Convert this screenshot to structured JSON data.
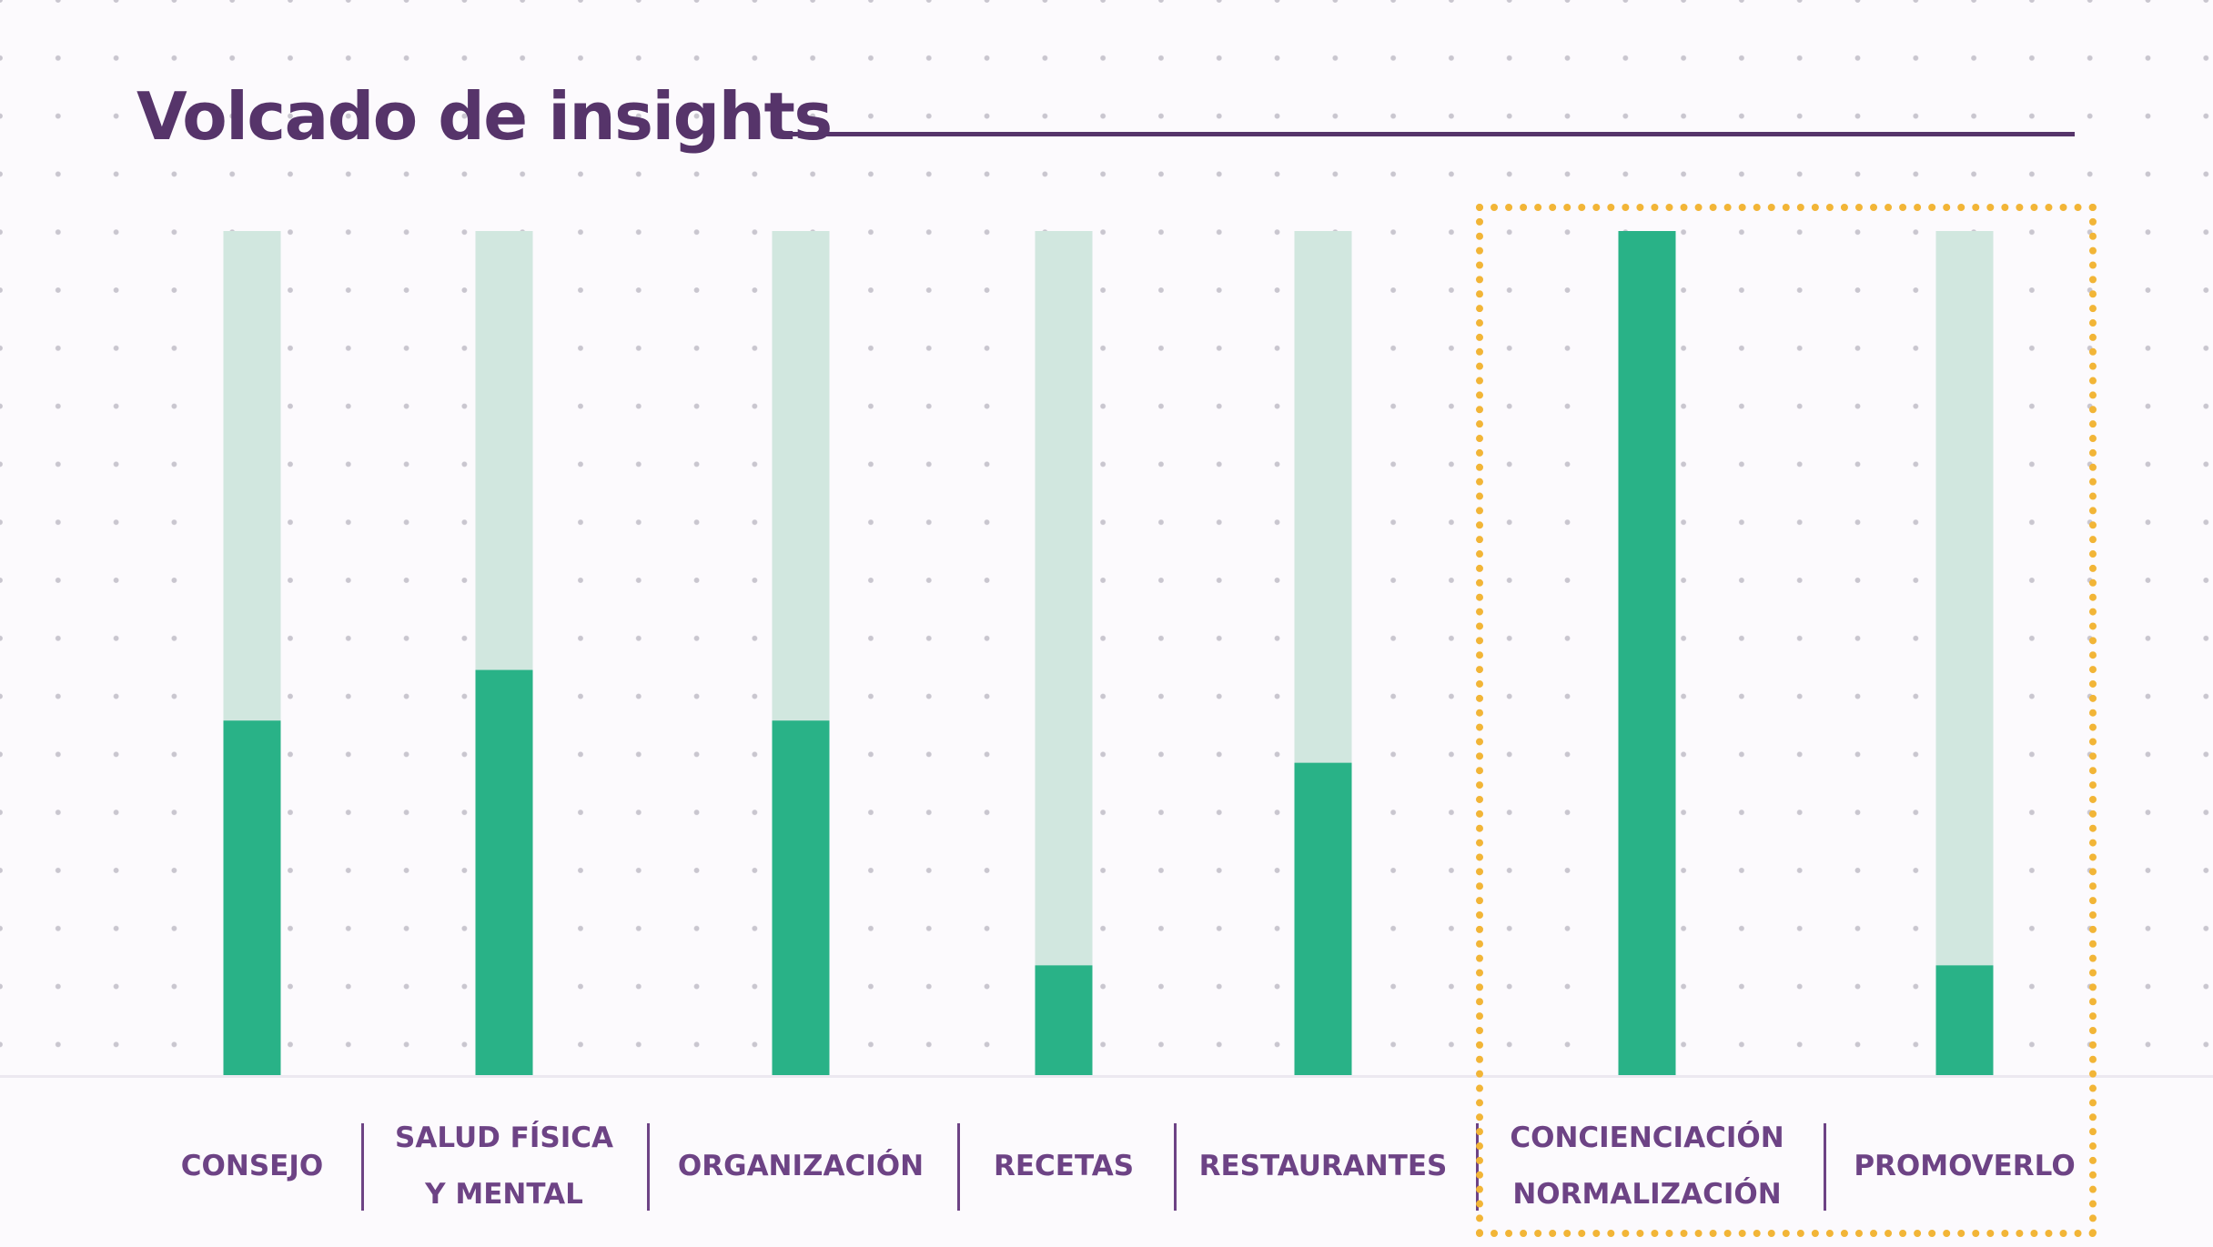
{
  "title": "Volcado de insights",
  "colors": {
    "title": "#56346a",
    "bar_fill": "#29b287",
    "bar_track": "#d1e7df",
    "label": "#6d4385",
    "highlight": "#f2b537"
  },
  "chart_data": {
    "type": "bar",
    "title": "Volcado de insights",
    "xlabel": "",
    "ylabel": "",
    "ylim": [
      0,
      100
    ],
    "grid": false,
    "legend": "none",
    "categories": [
      "CONSEJO",
      "SALUD FÍSICA\nY MENTAL",
      "ORGANIZACIÓN",
      "RECETAS",
      "RESTAURANTES",
      "CONCIENCIACIÓN\nNORMALIZACIÓN",
      "PROMOVERLO"
    ],
    "values": [
      42,
      48,
      42,
      13,
      37,
      100,
      13
    ],
    "highlighted_categories": [
      "CONCIENCIACIÓN\nNORMALIZACIÓN",
      "PROMOVERLO"
    ]
  }
}
